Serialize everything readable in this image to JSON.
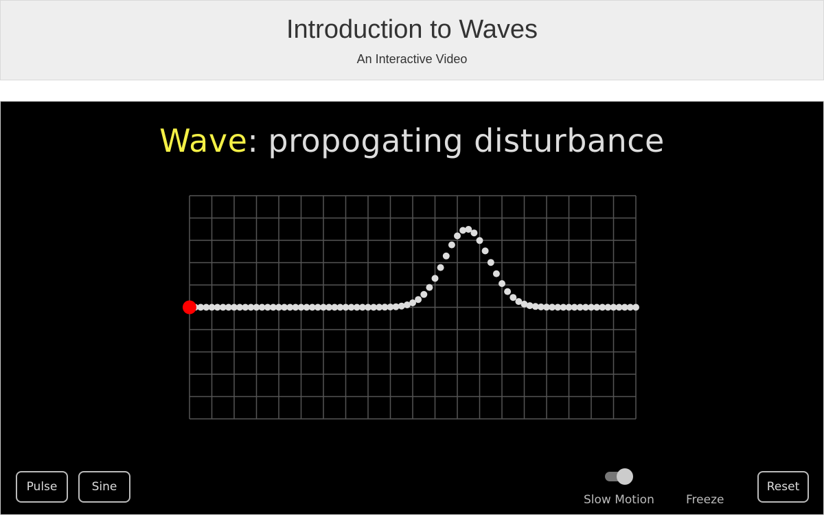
{
  "header": {
    "title": "Introduction to Waves",
    "subtitle": "An Interactive Video"
  },
  "stage": {
    "title_term": "Wave",
    "title_colon": ":",
    "title_rest": "propogating disturbance",
    "colors": {
      "background": "#000000",
      "term": "#f4f046",
      "text": "#dddddd",
      "grid": "#555555",
      "dots": "#dddddd",
      "source_dot": "#ff0000"
    }
  },
  "wave": {
    "grid_columns": 20,
    "grid_rows": 10,
    "dot_count": 81,
    "pulse_center_fraction": 0.5,
    "pulse_amplitude_rows": 3.5,
    "source": "red source dot at left end"
  },
  "controls": {
    "pulse_label": "Pulse",
    "sine_label": "Sine",
    "slow_motion_label": "Slow Motion",
    "slow_motion_on": true,
    "freeze_label": "Freeze",
    "reset_label": "Reset"
  }
}
